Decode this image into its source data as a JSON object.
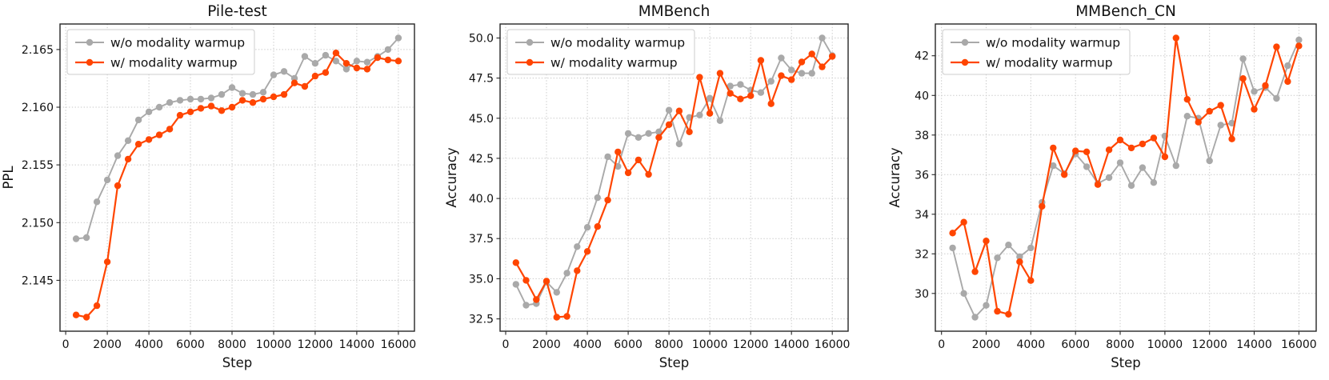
{
  "figure": {
    "background": "#ffffff",
    "xlabel": "Step",
    "legend_entries": [
      "w/o modality warmup",
      "w/ modality warmup"
    ],
    "colors": {
      "without_warmup": "#a9a9a9",
      "with_warmup": "#ff4500"
    }
  },
  "chart_data": [
    {
      "type": "line",
      "title": "Pile-test",
      "xlabel": "Step",
      "ylabel": "PPL",
      "grid": true,
      "legend_position": "upper left",
      "x": [
        500,
        1000,
        1500,
        2000,
        2500,
        3000,
        3500,
        4000,
        4500,
        5000,
        5500,
        6000,
        6500,
        7000,
        7500,
        8000,
        8500,
        9000,
        9500,
        10000,
        10500,
        11000,
        11500,
        12000,
        12500,
        13000,
        13500,
        14000,
        14500,
        15000,
        15500,
        16000
      ],
      "xticks": [
        0,
        2000,
        4000,
        6000,
        8000,
        10000,
        12000,
        14000,
        16000
      ],
      "xtick_labels": [
        "0",
        "2000",
        "4000",
        "6000",
        "8000",
        "10000",
        "12000",
        "14000",
        "16000"
      ],
      "yticks": [
        2.145,
        2.15,
        2.155,
        2.16,
        2.165
      ],
      "ytick_labels": [
        "2.145",
        "2.150",
        "2.155",
        "2.160",
        "2.165"
      ],
      "series": [
        {
          "name": "w/o modality warmup",
          "color": "#a9a9a9",
          "marker": "circle",
          "values": [
            2.1486,
            2.1487,
            2.1518,
            2.1537,
            2.1558,
            2.1571,
            2.1589,
            2.1596,
            2.16,
            2.1604,
            2.1606,
            2.1607,
            2.1607,
            2.1608,
            2.1611,
            2.1617,
            2.1612,
            2.1611,
            2.1613,
            2.1628,
            2.1631,
            2.1625,
            2.1644,
            2.1638,
            2.1645,
            2.164,
            2.1633,
            2.164,
            2.1639,
            2.1644,
            2.165,
            2.166
          ]
        },
        {
          "name": "w/ modality warmup",
          "color": "#ff4500",
          "marker": "circle",
          "values": [
            2.142,
            2.1418,
            2.1428,
            2.1466,
            2.1532,
            2.1555,
            2.1568,
            2.1572,
            2.1576,
            2.1581,
            2.1593,
            2.1596,
            2.1599,
            2.1601,
            2.1597,
            2.16,
            2.1606,
            2.1604,
            2.1607,
            2.1609,
            2.1611,
            2.1621,
            2.1618,
            2.1627,
            2.163,
            2.1647,
            2.1638,
            2.1634,
            2.1633,
            2.1643,
            2.1641,
            2.164
          ]
        }
      ]
    },
    {
      "type": "line",
      "title": "MMBench",
      "xlabel": "Step",
      "ylabel": "Accuracy",
      "grid": true,
      "legend_position": "upper left",
      "x": [
        500,
        1000,
        1500,
        2000,
        2500,
        3000,
        3500,
        4000,
        4500,
        5000,
        5500,
        6000,
        6500,
        7000,
        7500,
        8000,
        8500,
        9000,
        9500,
        10000,
        10500,
        11000,
        11500,
        12000,
        12500,
        13000,
        13500,
        14000,
        14500,
        15000,
        15500,
        16000
      ],
      "xticks": [
        0,
        2000,
        4000,
        6000,
        8000,
        10000,
        12000,
        14000,
        16000
      ],
      "xtick_labels": [
        "0",
        "2000",
        "4000",
        "6000",
        "8000",
        "10000",
        "12000",
        "14000",
        "16000"
      ],
      "yticks": [
        32.5,
        35.0,
        37.5,
        40.0,
        42.5,
        45.0,
        47.5,
        50.0
      ],
      "ytick_labels": [
        "32.5",
        "35.0",
        "37.5",
        "40.0",
        "42.5",
        "45.0",
        "47.5",
        "50.0"
      ],
      "series": [
        {
          "name": "w/o modality warmup",
          "color": "#a9a9a9",
          "marker": "circle",
          "values": [
            34.65,
            33.35,
            33.45,
            34.8,
            34.15,
            35.35,
            37.0,
            38.2,
            40.05,
            42.6,
            42.0,
            44.05,
            43.8,
            44.05,
            44.15,
            45.5,
            43.4,
            45.05,
            45.2,
            46.25,
            44.85,
            47.0,
            47.1,
            46.75,
            46.6,
            47.3,
            48.75,
            48.0,
            47.8,
            47.8,
            50.0,
            48.9
          ]
        },
        {
          "name": "w/ modality warmup",
          "color": "#ff4500",
          "marker": "circle",
          "values": [
            36.0,
            34.9,
            33.7,
            34.85,
            32.6,
            32.65,
            35.5,
            36.7,
            38.25,
            39.9,
            42.9,
            41.6,
            42.4,
            41.5,
            43.8,
            44.6,
            45.45,
            44.15,
            47.55,
            45.3,
            47.8,
            46.55,
            46.2,
            46.4,
            48.6,
            45.9,
            47.65,
            47.4,
            48.5,
            49.0,
            48.2,
            48.85
          ]
        }
      ]
    },
    {
      "type": "line",
      "title": "MMBench_CN",
      "xlabel": "Step",
      "ylabel": "Accuracy",
      "grid": true,
      "legend_position": "upper left",
      "x": [
        500,
        1000,
        1500,
        2000,
        2500,
        3000,
        3500,
        4000,
        4500,
        5000,
        5500,
        6000,
        6500,
        7000,
        7500,
        8000,
        8500,
        9000,
        9500,
        10000,
        10500,
        11000,
        11500,
        12000,
        12500,
        13000,
        13500,
        14000,
        14500,
        15000,
        15500,
        16000
      ],
      "xticks": [
        0,
        2000,
        4000,
        6000,
        8000,
        10000,
        12000,
        14000,
        16000
      ],
      "xtick_labels": [
        "0",
        "2000",
        "4000",
        "6000",
        "8000",
        "10000",
        "12000",
        "14000",
        "16000"
      ],
      "yticks": [
        30,
        32,
        34,
        36,
        38,
        40,
        42
      ],
      "ytick_labels": [
        "30",
        "32",
        "34",
        "36",
        "38",
        "40",
        "42"
      ],
      "series": [
        {
          "name": "w/o modality warmup",
          "color": "#a9a9a9",
          "marker": "circle",
          "values": [
            32.3,
            30.0,
            28.8,
            29.4,
            31.8,
            32.45,
            31.85,
            32.3,
            34.6,
            36.45,
            36.05,
            37.05,
            36.4,
            35.55,
            35.85,
            36.6,
            35.45,
            36.35,
            35.6,
            37.95,
            36.45,
            38.95,
            38.85,
            36.7,
            38.5,
            38.6,
            41.85,
            40.2,
            40.4,
            39.85,
            41.5,
            42.8
          ]
        },
        {
          "name": "w/ modality warmup",
          "color": "#ff4500",
          "marker": "circle",
          "values": [
            33.05,
            33.6,
            31.1,
            32.65,
            29.1,
            28.95,
            31.6,
            30.65,
            34.4,
            37.35,
            36.0,
            37.2,
            37.15,
            35.5,
            37.25,
            37.75,
            37.35,
            37.55,
            37.85,
            36.9,
            42.9,
            39.8,
            38.65,
            39.2,
            39.5,
            37.8,
            40.85,
            39.3,
            40.5,
            42.45,
            40.7,
            42.5
          ]
        }
      ]
    }
  ]
}
